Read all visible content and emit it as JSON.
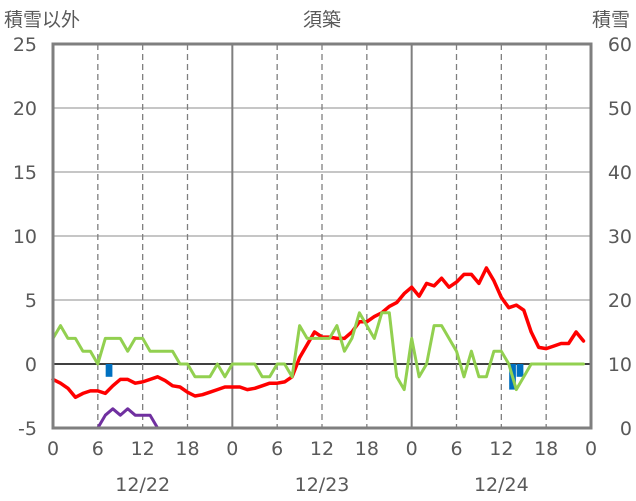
{
  "chart_data": {
    "type": "line",
    "title": "須築",
    "left_axis_title": "積雪以外",
    "right_axis_title": "積雪",
    "left_ylim": [
      -5,
      25
    ],
    "left_yticks": [
      -5,
      0,
      5,
      10,
      15,
      20,
      25
    ],
    "right_ylim": [
      0,
      60
    ],
    "right_yticks": [
      0,
      10,
      20,
      30,
      40,
      50,
      60
    ],
    "x_hours": [
      0,
      72
    ],
    "x_tick_labels": [
      "0",
      "6",
      "12",
      "18",
      "0",
      "6",
      "12",
      "18",
      "0",
      "6",
      "12",
      "18",
      "0"
    ],
    "date_labels": [
      {
        "label": "12/22",
        "hour": 12
      },
      {
        "label": "12/23",
        "hour": 36
      },
      {
        "label": "12/24",
        "hour": 60
      }
    ],
    "gridlines": "dashed at 6h/12h/18h, solid at day boundaries, horizontal at each tick",
    "series": [
      {
        "color": "#ff0000",
        "axis": "left",
        "x": [
          0,
          1,
          2,
          3,
          4,
          5,
          6,
          7,
          8,
          9,
          10,
          11,
          12,
          13,
          14,
          15,
          16,
          17,
          18,
          19,
          20,
          21,
          22,
          23,
          24,
          25,
          26,
          27,
          28,
          29,
          30,
          31,
          32,
          33,
          34,
          35,
          36,
          37,
          38,
          39,
          40,
          41,
          42,
          43,
          44,
          45,
          46,
          47,
          48,
          49,
          50,
          51,
          52,
          53,
          54,
          55,
          56,
          57,
          58,
          59,
          60,
          61,
          62,
          63,
          64,
          65,
          66,
          67,
          68,
          69,
          70,
          71
        ],
        "values": [
          -1.2,
          -1.5,
          -1.9,
          -2.6,
          -2.3,
          -2.1,
          -2.1,
          -2.3,
          -1.7,
          -1.2,
          -1.2,
          -1.5,
          -1.4,
          -1.2,
          -1.0,
          -1.3,
          -1.7,
          -1.8,
          -2.2,
          -2.5,
          -2.4,
          -2.2,
          -2.0,
          -1.8,
          -1.8,
          -1.8,
          -2.0,
          -1.9,
          -1.7,
          -1.5,
          -1.5,
          -1.4,
          -1.0,
          0.5,
          1.5,
          2.5,
          2.1,
          2.1,
          2.0,
          2.0,
          2.5,
          3.3,
          3.3,
          3.7,
          4.0,
          4.5,
          4.8,
          5.5,
          6.0,
          5.3,
          6.3,
          6.1,
          6.7,
          6.0,
          6.4,
          7.0,
          7.0,
          6.3,
          7.5,
          6.5,
          5.2,
          4.4,
          4.6,
          4.2,
          2.5,
          1.3,
          1.2,
          1.4,
          1.6,
          1.6,
          2.5,
          1.8
        ]
      },
      {
        "color": "#92d050",
        "axis": "left",
        "x": [
          0,
          1,
          2,
          3,
          4,
          5,
          6,
          7,
          8,
          9,
          10,
          11,
          12,
          13,
          14,
          15,
          16,
          17,
          18,
          19,
          20,
          21,
          22,
          23,
          24,
          25,
          26,
          27,
          28,
          29,
          30,
          31,
          32,
          33,
          34,
          35,
          36,
          37,
          38,
          39,
          40,
          41,
          42,
          43,
          44,
          45,
          46,
          47,
          48,
          49,
          50,
          51,
          52,
          53,
          54,
          55,
          56,
          57,
          58,
          59,
          60,
          61,
          62,
          63,
          64,
          65,
          66,
          67,
          68,
          69,
          70,
          71
        ],
        "values": [
          2,
          3,
          2,
          2,
          1,
          1,
          0,
          2,
          2,
          2,
          1,
          2,
          2,
          1,
          1,
          1,
          1,
          0,
          0,
          -1,
          -1,
          -1,
          0,
          -1,
          0,
          0,
          0,
          0,
          -1,
          -1,
          0,
          0,
          -1,
          3,
          2,
          2,
          2,
          2,
          3,
          1,
          2,
          4,
          3,
          2,
          4,
          4,
          -1,
          -2,
          2,
          -1,
          0,
          3,
          3,
          2,
          1,
          -1,
          1,
          -1,
          -1,
          1,
          1,
          0,
          -2,
          -1,
          0,
          0,
          0,
          0,
          0,
          0,
          0,
          0
        ]
      },
      {
        "color": "#7030a0",
        "axis": "right",
        "x": [
          0,
          1,
          2,
          3,
          4,
          5,
          6,
          7,
          8,
          9,
          10,
          11,
          12,
          13,
          14,
          15,
          16,
          17,
          18,
          19,
          20,
          21,
          22,
          23,
          24,
          25,
          26,
          27,
          28,
          29,
          30,
          31,
          32,
          33,
          34,
          35,
          36,
          37,
          38,
          39,
          40,
          41,
          42,
          43,
          44,
          45,
          46,
          47,
          48,
          49,
          50,
          51,
          52,
          53,
          54,
          55,
          56,
          57,
          58,
          59,
          60,
          61,
          62,
          63,
          64,
          65,
          66,
          67,
          68,
          69,
          70,
          71,
          72
        ],
        "values": [
          0,
          0,
          0,
          0,
          0,
          0,
          0,
          2.0,
          3.0,
          2.0,
          3.0,
          2.0,
          2.0,
          2.0,
          0,
          0,
          0,
          0,
          0,
          0,
          0,
          0,
          0,
          0,
          0,
          0,
          0,
          0,
          0,
          0,
          0,
          0,
          0,
          0,
          0,
          0,
          0,
          0,
          0,
          0,
          0,
          0,
          0,
          0,
          0,
          0,
          0,
          0,
          0,
          0,
          0,
          0,
          0,
          0,
          0,
          0,
          0,
          0,
          0,
          0,
          0,
          0,
          0,
          0,
          0,
          0,
          0,
          0,
          0,
          0,
          0,
          0,
          0
        ]
      }
    ],
    "bars": {
      "color": "#0070c0",
      "axis": "left",
      "x": [
        7.5,
        61.5,
        62.5
      ],
      "values": [
        -1.0,
        -2.0,
        -1.0
      ]
    }
  }
}
